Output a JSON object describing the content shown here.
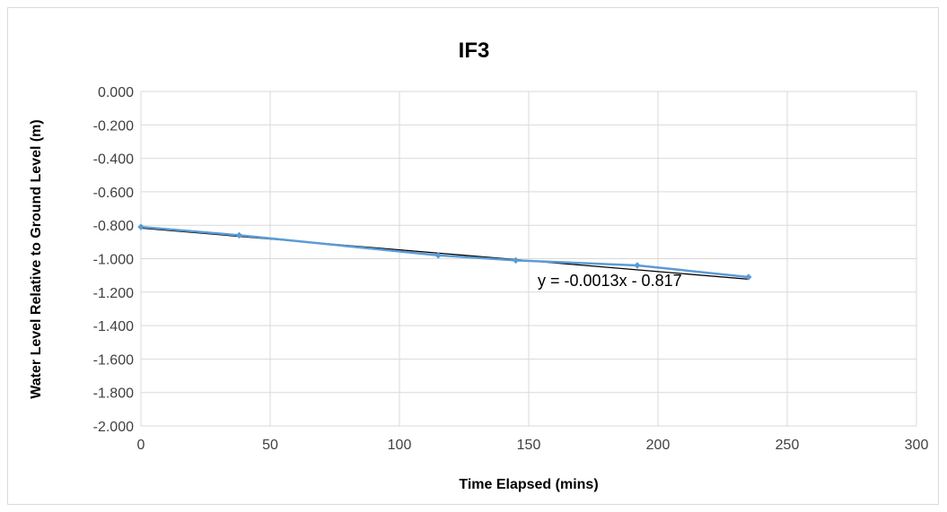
{
  "chart_data": {
    "type": "scatter",
    "title": "IF3",
    "xlabel": "Time Elapsed (mins)",
    "ylabel": "Water Level Relative to Ground Level (m)",
    "xlim": [
      0,
      300
    ],
    "ylim": [
      -2.0,
      0.0
    ],
    "x_ticks": [
      0,
      50,
      100,
      150,
      200,
      250,
      300
    ],
    "x_tick_labels": [
      "0",
      "50",
      "100",
      "150",
      "200",
      "250",
      "300"
    ],
    "y_ticks": [
      0.0,
      -0.2,
      -0.4,
      -0.6,
      -0.8,
      -1.0,
      -1.2,
      -1.4,
      -1.6,
      -1.8,
      -2.0
    ],
    "y_tick_labels": [
      "0.000",
      "-0.200",
      "-0.400",
      "-0.600",
      "-0.800",
      "-1.000",
      "-1.200",
      "-1.400",
      "-1.600",
      "-1.800",
      "-2.000"
    ],
    "grid": true,
    "series": [
      {
        "x": [
          0,
          38,
          115,
          145,
          192,
          235
        ],
        "y": [
          -0.81,
          -0.86,
          -0.98,
          -1.01,
          -1.04,
          -1.11
        ],
        "color": "#5b9bd5"
      }
    ],
    "trendline": {
      "slope": -0.0013,
      "intercept": -0.817,
      "x_range": [
        0,
        235
      ],
      "equation": "y = -0.0013x - 0.817",
      "color": "#000000"
    }
  }
}
